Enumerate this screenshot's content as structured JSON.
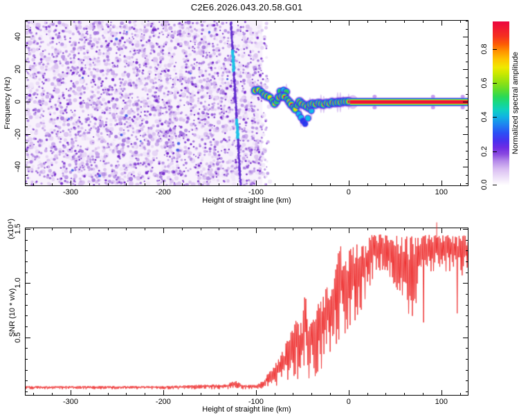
{
  "title": "C2E6.2026.043.20.58.G01",
  "chart_data": [
    {
      "type": "heatmap",
      "name": "spectrogram",
      "xlabel": "Height of straight line (km)",
      "ylabel": "Frequency (Hz)",
      "xlim": [
        -348.5,
        128.5
      ],
      "ylim": [
        -51.3,
        50.0
      ],
      "x_major_ticks": [
        -300,
        -200,
        -100,
        0,
        100
      ],
      "x_tick_labels": [
        "-300",
        "-200",
        "-100",
        "0",
        "100"
      ],
      "x_minor_step": 20,
      "y_major_ticks": [
        -40,
        -20,
        0,
        20,
        40
      ],
      "y_tick_labels": [
        "-40",
        "-20",
        "0",
        "20",
        "40"
      ],
      "y_minor_step": 5,
      "colorbar": {
        "title": "Normalized spectral amplitude",
        "ticks": [
          0.0,
          0.2,
          0.4,
          0.6,
          0.8
        ],
        "tick_labels": [
          "0.0",
          "0.2",
          "0.4",
          "0.6",
          "0.8"
        ],
        "vmax": 0.96,
        "stops": [
          [
            0.0,
            "#ffffff"
          ],
          [
            0.05,
            "#eddff8"
          ],
          [
            0.1,
            "#d9bdf2"
          ],
          [
            0.15,
            "#b488e9"
          ],
          [
            0.19,
            "#8a4ae0"
          ],
          [
            0.23,
            "#6e2ce4"
          ],
          [
            0.27,
            "#4a30ee"
          ],
          [
            0.32,
            "#2b50f5"
          ],
          [
            0.37,
            "#1e83f0"
          ],
          [
            0.42,
            "#0fb4e2"
          ],
          [
            0.46,
            "#0ed0c0"
          ],
          [
            0.5,
            "#15d88d"
          ],
          [
            0.54,
            "#2ad957"
          ],
          [
            0.58,
            "#5bdc2e"
          ],
          [
            0.63,
            "#93e112"
          ],
          [
            0.68,
            "#c8e800"
          ],
          [
            0.72,
            "#f0e800"
          ],
          [
            0.77,
            "#fec300"
          ],
          [
            0.82,
            "#ff9000"
          ],
          [
            0.86,
            "#fc5d05"
          ],
          [
            0.91,
            "#f52f20"
          ],
          [
            1.0,
            "#ec0540"
          ]
        ]
      },
      "features": {
        "noise_region": {
          "x_from_km": -348.5,
          "x_to_km": -93,
          "seed": 987654321,
          "background": "#f8f2fc",
          "fade_width_km": 9,
          "passes": [
            {
              "colors": [
                "#efe5f9",
                "#e4d3f5",
                "#d8c0f0"
              ],
              "count": 1500,
              "r_min": 2.0,
              "r_max": 4.2,
              "alpha": 0.9
            },
            {
              "colors": [
                "#c5a3ea",
                "#b289e3",
                "#9f6ddc"
              ],
              "count": 1150,
              "r_min": 1.5,
              "r_max": 3.2,
              "alpha": 0.85
            },
            {
              "colors": [
                "#8b4cd6",
                "#7a33cf",
                "#6b1dc9"
              ],
              "count": 760,
              "r_min": 1.0,
              "r_max": 2.5,
              "alpha": 0.9
            }
          ],
          "rare_dot_color": "#3a55e8",
          "rare_dot_count": 14
        },
        "interference_streak": {
          "from_km_hz": [
            -127,
            49
          ],
          "to_km_hz": [
            -116.5,
            -51
          ],
          "color": "#5a23cd",
          "bright_color": "#1ac3e8",
          "bright_segments": [
            [
              0.17,
              0.3
            ],
            [
              0.6,
              0.72
            ]
          ]
        },
        "trace_rings": [
          [
            "#7b2bd8",
            2.0,
            0.1
          ],
          [
            "#2436ef",
            1.6,
            0.25
          ],
          [
            "#10c4e8",
            1.3,
            0.4
          ],
          [
            "#2ed24b",
            1.05,
            0.6
          ],
          [
            "#f0e800",
            0.78,
            0.8
          ],
          [
            "#ec1038",
            0.5,
            0.95
          ]
        ],
        "signal_trace_points": [
          [
            -100.7,
            7.0,
            1
          ],
          [
            -97.0,
            7.4,
            0.85
          ],
          [
            -94.0,
            6.2,
            0.6
          ],
          [
            -91.0,
            4.5,
            0.85
          ],
          [
            -88.1,
            3.6,
            1
          ],
          [
            -85.1,
            2.8,
            0.85
          ],
          [
            -82.1,
            0.6,
            0.6
          ],
          [
            -79.9,
            -1.1,
            0.85
          ],
          [
            -77.6,
            0.2,
            0.6
          ],
          [
            -75.4,
            2.8,
            1
          ],
          [
            -73.9,
            6.6,
            0.6
          ],
          [
            -70.1,
            7.4,
            0.4
          ],
          [
            -67.2,
            6.2,
            0.6
          ],
          [
            -72.4,
            3.6,
            0.85
          ],
          [
            -69.4,
            3.2,
            1
          ],
          [
            -66.4,
            1.9,
            0.6
          ],
          [
            -64.2,
            0.2,
            0.85
          ],
          [
            -61.9,
            -1.5,
            1
          ],
          [
            -59.7,
            -3.2,
            0.6
          ],
          [
            -57.5,
            -4.5,
            0.85
          ],
          [
            -55.2,
            -1.9,
            0.6
          ],
          [
            -53.0,
            0.2,
            1
          ],
          [
            -53.7,
            -7.4,
            0.4
          ],
          [
            -51.5,
            -9.6,
            0.4
          ],
          [
            -49.3,
            -11.7,
            0.25
          ],
          [
            -47.0,
            -13.4,
            0.25
          ],
          [
            -44.0,
            -10.0,
            0.4
          ],
          [
            -50.7,
            -1.1,
            1
          ],
          [
            -47.8,
            -1.9,
            0.85
          ],
          [
            -44.8,
            -2.8,
            1
          ],
          [
            -42.5,
            -4.0,
            0.6
          ],
          [
            -40.3,
            -5.3,
            0.4
          ],
          [
            -41.8,
            -1.5,
            0.85
          ],
          [
            -38.8,
            -1.1,
            1
          ],
          [
            -35.8,
            -1.5,
            1
          ],
          [
            -32.8,
            -0.6,
            0.85
          ],
          [
            -29.9,
            -1.1,
            1
          ],
          [
            -26.9,
            -1.5,
            1
          ],
          [
            -23.9,
            -0.6,
            0.85
          ],
          [
            -20.9,
            -1.1,
            1
          ],
          [
            -17.9,
            -0.2,
            1
          ],
          [
            -14.9,
            -0.6,
            0.85
          ],
          [
            -11.9,
            -0.2,
            1
          ],
          [
            -9.0,
            -0.2,
            1
          ],
          [
            -6.0,
            0.2,
            0.85
          ],
          [
            -3.0,
            0.2,
            1
          ],
          [
            0.0,
            0.2,
            1
          ]
        ],
        "carrier_band": {
          "x_from_km": 1.5,
          "center_hz": 0,
          "halo_bumps_km": [
            28,
            91,
            123
          ],
          "layers": [
            [
              "#8a35dd",
              13,
              0.5
            ],
            [
              "#2436ef",
              11,
              1
            ],
            [
              "#10c4e8",
              9.5,
              1
            ],
            [
              "#2ed24b",
              8,
              1
            ],
            [
              "#f0e800",
              6.8,
              1
            ],
            [
              "#ec1038",
              5,
              1
            ]
          ]
        }
      }
    },
    {
      "type": "line",
      "name": "snr",
      "xlabel": "Height of straight line (km)",
      "ylabel": "SNR (10 * v/v)",
      "y_scale_note": "(x10⁴)",
      "xlim": [
        -348.5,
        128.5
      ],
      "ylim": [
        -0.032,
        1.506
      ],
      "x_major_ticks": [
        -300,
        -200,
        -100,
        0,
        100
      ],
      "x_tick_labels": [
        "-300",
        "-200",
        "-100",
        "0",
        "100"
      ],
      "x_minor_step": 20,
      "y_major_ticks": [
        0.5,
        1.0,
        1.5
      ],
      "y_tick_labels": [
        "0.5",
        "1.0",
        "1.5"
      ],
      "y_minor_step": 0.1,
      "line_color": "#ee3333",
      "seed": 777123,
      "series": [
        {
          "name": "SNR",
          "envelope_km": [
            -348,
            -200,
            -132,
            -122,
            -114,
            -100,
            -92,
            -86,
            -80,
            -74,
            -68,
            -62,
            -56,
            -50,
            -47,
            -44,
            -40,
            -36,
            -32,
            -28,
            -24,
            -20,
            -16,
            -12,
            -8,
            -4,
            0,
            4,
            8,
            12,
            16,
            20,
            25,
            30,
            35,
            40,
            45,
            50,
            55,
            60,
            65,
            70,
            75,
            80,
            85,
            90,
            95,
            100,
            105,
            110,
            115,
            120,
            125,
            129
          ],
          "envelope_lo": [
            0.02,
            0.02,
            0.02,
            0.03,
            0.02,
            0.02,
            0.03,
            0.04,
            0.05,
            0.06,
            0.07,
            0.08,
            0.1,
            0.12,
            0.25,
            0.1,
            0.12,
            0.14,
            0.18,
            0.22,
            0.28,
            0.26,
            0.3,
            0.42,
            0.48,
            0.45,
            0.55,
            0.6,
            0.62,
            0.68,
            0.78,
            0.88,
            1.0,
            1.08,
            1.12,
            1.1,
            1.05,
            0.95,
            0.8,
            0.65,
            0.62,
            0.7,
            0.85,
            1.0,
            1.05,
            1.1,
            1.1,
            1.12,
            1.1,
            1.08,
            1.1,
            1.05,
            1.08,
            1.1
          ],
          "envelope_hi": [
            0.05,
            0.05,
            0.07,
            0.1,
            0.06,
            0.06,
            0.1,
            0.18,
            0.26,
            0.32,
            0.44,
            0.55,
            0.68,
            0.62,
            0.97,
            0.55,
            0.72,
            0.65,
            0.85,
            0.92,
            1.02,
            0.88,
            1.0,
            1.26,
            1.36,
            1.18,
            1.3,
            1.33,
            1.38,
            1.28,
            1.38,
            1.42,
            1.45,
            1.44,
            1.45,
            1.44,
            1.45,
            1.44,
            1.45,
            1.43,
            1.44,
            1.44,
            1.43,
            1.44,
            1.45,
            1.44,
            1.45,
            1.45,
            1.44,
            1.45,
            1.43,
            1.44,
            1.45,
            1.44
          ]
        }
      ],
      "deep_dips": [
        [
          40,
          52,
          0.05
        ],
        [
          52,
          76,
          0.13
        ],
        [
          76,
          130,
          0.05
        ]
      ],
      "deep_dip_floor": 0.55,
      "deep_dip_span": 0.3,
      "spikes": [
        [
          95,
          1.56
        ]
      ]
    }
  ]
}
